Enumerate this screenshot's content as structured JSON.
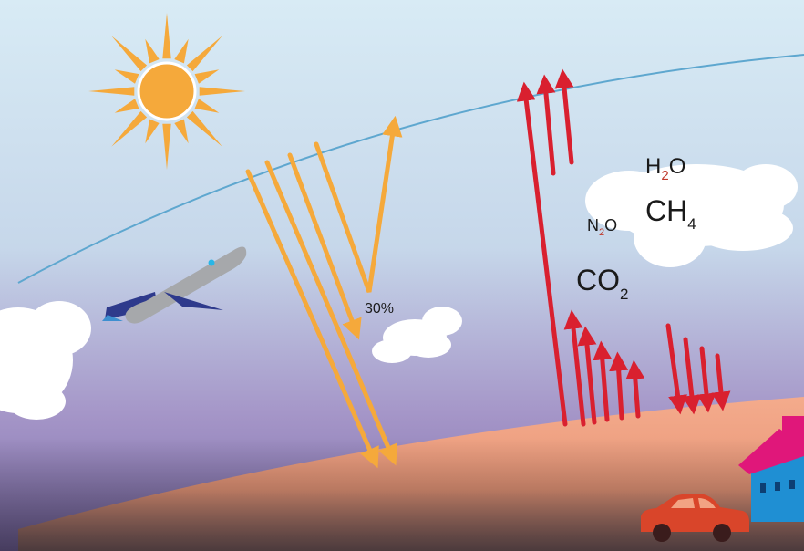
{
  "labels": {
    "reflected_percent": "30%"
  },
  "gases": {
    "water_vapor": {
      "base": "H",
      "sub": "2",
      "tail": "O"
    },
    "methane": {
      "base": "CH",
      "sub": "4",
      "tail": ""
    },
    "nitrous_oxide": {
      "base": "N",
      "sub": "2",
      "tail": "O"
    },
    "carbon_dioxide": {
      "base": "CO",
      "sub": "2",
      "tail": ""
    }
  },
  "colors": {
    "sky_top": "#cfe6f2",
    "sky_bottom": "#8a79b5",
    "ground": "#f2a383",
    "atmosphere_line": "#5ea7cf",
    "sun": "#f5a93b",
    "sunlight_arrow": "#f5a93b",
    "infrared_arrow": "#d9202f",
    "subscript": "#c0392b",
    "plane_body": "#a6a8ab",
    "plane_wing": "#2e3a8c",
    "house_roof": "#e0177a",
    "house_wall": "#1f8fd3",
    "car": "#d9452a"
  },
  "icons": [
    "sun-icon",
    "airplane-icon",
    "cloud-icon",
    "house-icon",
    "car-icon"
  ]
}
